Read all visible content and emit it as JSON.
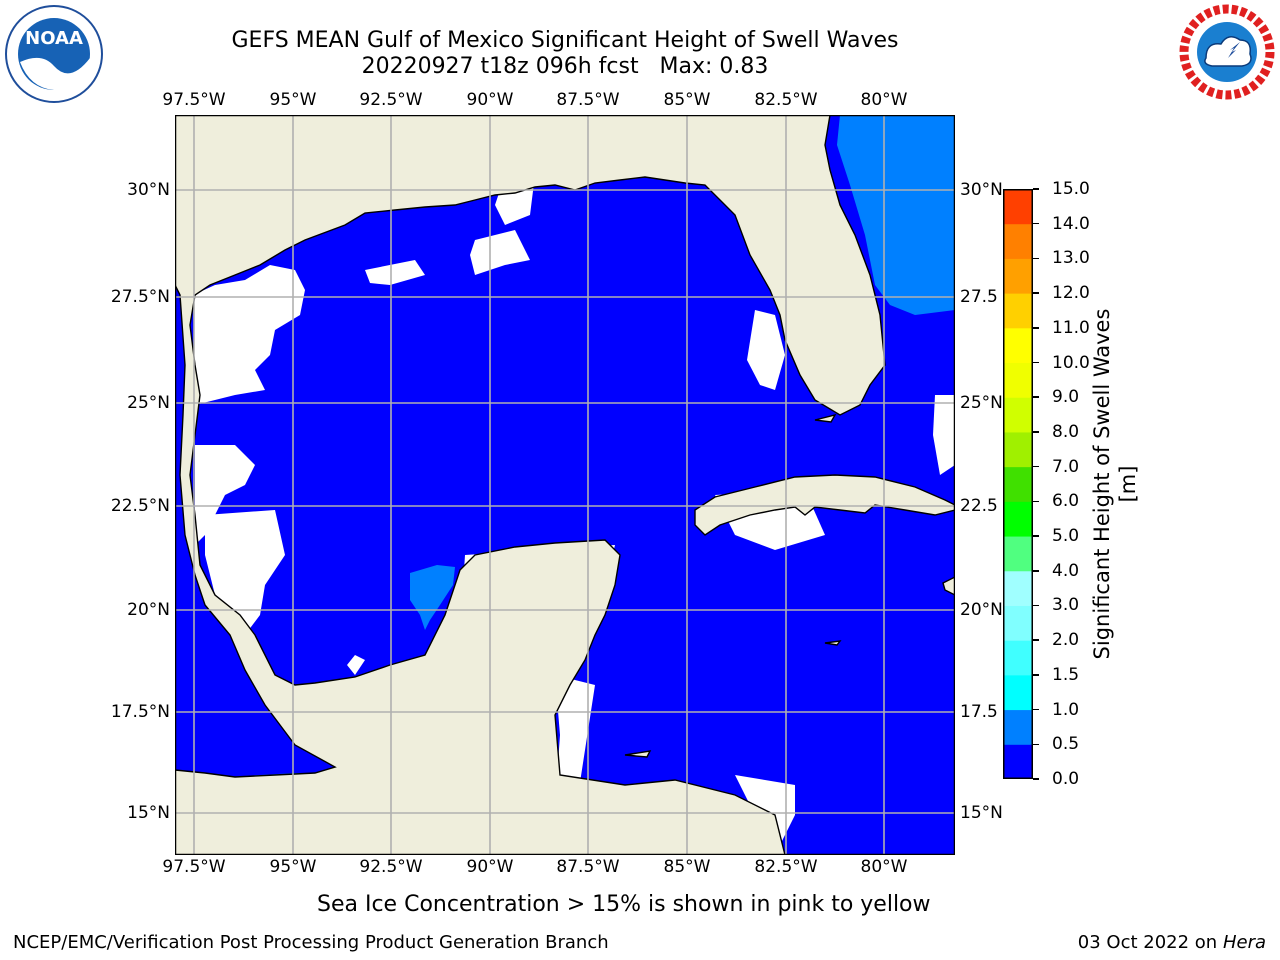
{
  "header": {
    "title_line1": "GEFS MEAN Gulf of Mexico Significant Height of Swell Waves",
    "title_line2": "20220927 t18z 096h fcst   Max: 0.83"
  },
  "logos": {
    "left": "NOAA",
    "left_ring": "NATIONAL OCEANIC AND ATMOSPHERIC ADMINISTRATION · U.S. DEPARTMENT OF COMMERCE",
    "right_ring": "NATIONAL WEATHER SERVICE"
  },
  "map": {
    "lon_ticks": [
      "97.5°W",
      "95°W",
      "92.5°W",
      "90°W",
      "87.5°W",
      "85°W",
      "82.5°W",
      "80°W"
    ],
    "lat_ticks_left": [
      "30°N",
      "27.5°N",
      "25°N",
      "22.5°N",
      "20°N",
      "17.5°N",
      "15°N"
    ],
    "lat_ticks_right": [
      "30°N",
      "27.5",
      "25°N",
      "22.5",
      "20°N",
      "17.5",
      "15°N"
    ],
    "colors": {
      "land": "#efeedc",
      "ocean_0": "#0000ff",
      "ocean_05": "#0080ff",
      "nodata": "#ffffff",
      "grid": "#b0b0b0",
      "coast": "#000000"
    }
  },
  "colorbar": {
    "label": "Significant Height of Swell Waves [m]",
    "tick_labels": [
      "0.0",
      "0.5",
      "1.0",
      "1.5",
      "2.0",
      "3.0",
      "4.0",
      "5.0",
      "6.0",
      "7.0",
      "8.0",
      "9.0",
      "10.0",
      "11.0",
      "12.0",
      "13.0",
      "14.0",
      "15.0"
    ],
    "colors": [
      "#0000ff",
      "#0080ff",
      "#00ffff",
      "#40ffff",
      "#80ffff",
      "#a0ffff",
      "#50ff80",
      "#00ff00",
      "#40e000",
      "#a0f000",
      "#d0ff00",
      "#f0ff00",
      "#ffff00",
      "#ffd000",
      "#ffa000",
      "#ff8000",
      "#ff4000",
      "#ff0000"
    ]
  },
  "caption": "Sea Ice Concentration > 15% is shown in pink to yellow",
  "footer": {
    "left": "NCEP/EMC/Verification Post Processing Product Generation Branch",
    "date": "03 Oct 2022 on",
    "machine": "Hera"
  }
}
